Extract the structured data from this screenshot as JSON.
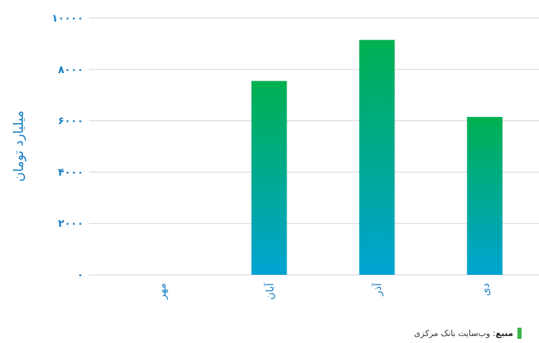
{
  "chart_data": {
    "type": "bar",
    "categories": [
      "مهر",
      "آبان",
      "آذر",
      "دی"
    ],
    "values": [
      0,
      7550,
      9150,
      6150
    ],
    "ylabel": "میلیارد تومان",
    "xlabel": "",
    "ylim": [
      0,
      10000
    ],
    "yticks": [
      {
        "value": 0,
        "label": "۰"
      },
      {
        "value": 2000,
        "label": "۲۰۰۰"
      },
      {
        "value": 4000,
        "label": "۴۰۰۰"
      },
      {
        "value": 6000,
        "label": "۶۰۰۰"
      },
      {
        "value": 8000,
        "label": "۸۰۰۰"
      },
      {
        "value": 10000,
        "label": "۱۰۰۰۰"
      }
    ],
    "grid": true,
    "colors": {
      "bar_top": "#00b050",
      "bar_bottom": "#00a3d2",
      "grid": "#d0d0d0",
      "text": "#1a7fc4"
    }
  },
  "source": {
    "key": "منبع",
    "text": "وب‌سایت بانک مرکزی",
    "marker_color": "#3cb54a"
  }
}
